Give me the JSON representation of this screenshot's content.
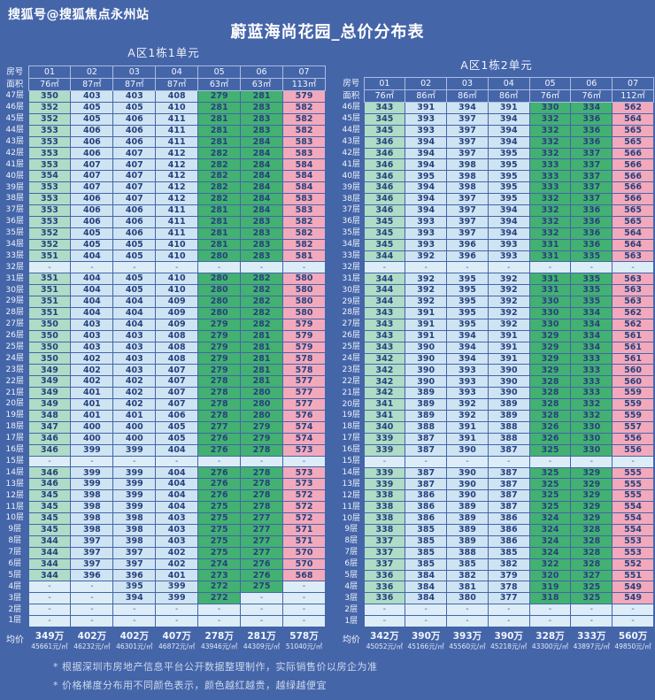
{
  "header": {
    "watermark": "搜狐号@搜狐焦点永州站",
    "title": "蔚蓝海尚花园_总价分布表"
  },
  "footnotes": [
    "* 根据深圳市房地产信息平台公开数据整理制作，实际销售价以房企为准",
    "* 价格梯度分布用不同颜色表示，颜色越红越贵，越绿越便宜"
  ],
  "colors": {
    "bg": "#4565a9",
    "celltext": "#27417d",
    "mint": "#aedcc6",
    "lightblue": "#cfe4f3",
    "green": "#42b172",
    "pink": "#f3a9bc",
    "empty": "#dcedf8"
  },
  "chart_data": [
    {
      "type": "table",
      "title": "A区1栋1单元",
      "corner_labels": {
        "room": "房号",
        "area": "面积",
        "avg": "均价"
      },
      "columns": [
        "01",
        "02",
        "03",
        "04",
        "05",
        "06",
        "07"
      ],
      "areas": [
        "76㎡",
        "87㎡",
        "87㎡",
        "87㎡",
        "63㎡",
        "63㎡",
        "113㎡"
      ],
      "floors": [
        "47层",
        "46层",
        "45层",
        "44层",
        "43层",
        "42层",
        "41层",
        "40层",
        "39层",
        "38层",
        "37层",
        "36层",
        "35层",
        "34层",
        "33层",
        "32层",
        "31层",
        "30层",
        "29层",
        "28层",
        "27层",
        "26层",
        "25层",
        "24层",
        "23层",
        "22层",
        "21层",
        "20层",
        "19层",
        "18层",
        "17层",
        "16层",
        "15层",
        "14层",
        "13层",
        "12层",
        "11层",
        "10层",
        "9层",
        "8层",
        "7层",
        "6层",
        "5层",
        "4层",
        "3层",
        "2层",
        "1层"
      ],
      "values": [
        [
          "350",
          "403",
          "403",
          "408",
          "279",
          "281",
          "579"
        ],
        [
          "352",
          "405",
          "405",
          "410",
          "281",
          "283",
          "582"
        ],
        [
          "352",
          "405",
          "406",
          "411",
          "281",
          "283",
          "582"
        ],
        [
          "353",
          "406",
          "406",
          "411",
          "281",
          "283",
          "582"
        ],
        [
          "353",
          "406",
          "406",
          "411",
          "281",
          "284",
          "583"
        ],
        [
          "353",
          "406",
          "407",
          "412",
          "282",
          "284",
          "583"
        ],
        [
          "353",
          "407",
          "407",
          "412",
          "282",
          "284",
          "584"
        ],
        [
          "354",
          "407",
          "407",
          "412",
          "282",
          "284",
          "584"
        ],
        [
          "353",
          "407",
          "407",
          "412",
          "282",
          "284",
          "584"
        ],
        [
          "353",
          "406",
          "407",
          "412",
          "282",
          "284",
          "583"
        ],
        [
          "353",
          "406",
          "406",
          "411",
          "281",
          "284",
          "583"
        ],
        [
          "353",
          "406",
          "406",
          "411",
          "281",
          "283",
          "582"
        ],
        [
          "352",
          "405",
          "406",
          "411",
          "281",
          "283",
          "582"
        ],
        [
          "352",
          "405",
          "405",
          "410",
          "281",
          "283",
          "582"
        ],
        [
          "351",
          "404",
          "405",
          "410",
          "280",
          "283",
          "581"
        ],
        [
          "-",
          "-",
          "-",
          "-",
          "-",
          "-",
          "-"
        ],
        [
          "351",
          "404",
          "405",
          "410",
          "280",
          "282",
          "580"
        ],
        [
          "351",
          "404",
          "405",
          "410",
          "280",
          "282",
          "580"
        ],
        [
          "351",
          "404",
          "404",
          "409",
          "280",
          "282",
          "580"
        ],
        [
          "351",
          "404",
          "404",
          "409",
          "280",
          "282",
          "580"
        ],
        [
          "350",
          "403",
          "404",
          "409",
          "279",
          "282",
          "579"
        ],
        [
          "350",
          "403",
          "403",
          "408",
          "279",
          "281",
          "579"
        ],
        [
          "350",
          "403",
          "403",
          "408",
          "279",
          "281",
          "579"
        ],
        [
          "350",
          "402",
          "403",
          "408",
          "279",
          "281",
          "578"
        ],
        [
          "349",
          "402",
          "403",
          "407",
          "279",
          "281",
          "578"
        ],
        [
          "349",
          "402",
          "402",
          "407",
          "278",
          "281",
          "577"
        ],
        [
          "349",
          "401",
          "402",
          "407",
          "278",
          "280",
          "577"
        ],
        [
          "349",
          "401",
          "402",
          "407",
          "278",
          "280",
          "577"
        ],
        [
          "348",
          "401",
          "401",
          "406",
          "278",
          "280",
          "576"
        ],
        [
          "347",
          "400",
          "400",
          "405",
          "277",
          "279",
          "574"
        ],
        [
          "346",
          "400",
          "400",
          "405",
          "276",
          "279",
          "574"
        ],
        [
          "346",
          "399",
          "399",
          "404",
          "276",
          "278",
          "573"
        ],
        [
          "-",
          "-",
          "-",
          "-",
          "-",
          "-",
          "-"
        ],
        [
          "346",
          "399",
          "399",
          "404",
          "276",
          "278",
          "573"
        ],
        [
          "346",
          "399",
          "399",
          "404",
          "276",
          "278",
          "573"
        ],
        [
          "345",
          "398",
          "399",
          "404",
          "276",
          "278",
          "572"
        ],
        [
          "345",
          "398",
          "399",
          "404",
          "275",
          "278",
          "572"
        ],
        [
          "345",
          "398",
          "398",
          "403",
          "275",
          "277",
          "572"
        ],
        [
          "345",
          "398",
          "398",
          "403",
          "275",
          "277",
          "571"
        ],
        [
          "344",
          "397",
          "398",
          "403",
          "275",
          "277",
          "571"
        ],
        [
          "344",
          "397",
          "397",
          "402",
          "275",
          "277",
          "570"
        ],
        [
          "344",
          "397",
          "397",
          "402",
          "274",
          "276",
          "570"
        ],
        [
          "344",
          "396",
          "396",
          "401",
          "273",
          "276",
          "568"
        ],
        [
          "-",
          "-",
          "395",
          "399",
          "272",
          "275",
          "-"
        ],
        [
          "-",
          "-",
          "394",
          "399",
          "272",
          "-",
          "-"
        ],
        [
          "-",
          "-",
          "-",
          "-",
          "-",
          "-",
          "-"
        ],
        [
          "-",
          "-",
          "-",
          "-",
          "-",
          "-",
          "-"
        ]
      ],
      "avg_prices": [
        "349万",
        "402万",
        "402万",
        "407万",
        "278万",
        "281万",
        "578万"
      ],
      "avg_unit_prices": [
        "45661元/㎡",
        "46232元/㎡",
        "46301元/㎡",
        "46872元/㎡",
        "43946元/㎡",
        "44309元/㎡",
        "51040元/㎡"
      ]
    },
    {
      "type": "table",
      "title": "A区1栋2单元",
      "corner_labels": {
        "room": "房号",
        "area": "面积",
        "avg": "均价"
      },
      "columns": [
        "01",
        "02",
        "03",
        "04",
        "05",
        "06",
        "07"
      ],
      "areas": [
        "76㎡",
        "86㎡",
        "86㎡",
        "86㎡",
        "76㎡",
        "76㎡",
        "112㎡"
      ],
      "floors": [
        "46层",
        "45层",
        "44层",
        "43层",
        "42层",
        "41层",
        "40层",
        "39层",
        "38层",
        "37层",
        "36层",
        "35层",
        "34层",
        "33层",
        "32层",
        "31层",
        "30层",
        "29层",
        "28层",
        "27层",
        "26层",
        "25层",
        "24层",
        "23层",
        "22层",
        "21层",
        "20层",
        "19层",
        "18层",
        "17层",
        "16层",
        "15层",
        "14层",
        "13层",
        "12层",
        "11层",
        "10层",
        "9层",
        "8层",
        "7层",
        "6层",
        "5层",
        "4层",
        "3层",
        "2层",
        "1层"
      ],
      "values": [
        [
          "343",
          "391",
          "394",
          "391",
          "330",
          "334",
          "562"
        ],
        [
          "345",
          "393",
          "397",
          "394",
          "332",
          "336",
          "564"
        ],
        [
          "345",
          "393",
          "397",
          "394",
          "332",
          "336",
          "565"
        ],
        [
          "346",
          "394",
          "397",
          "394",
          "332",
          "336",
          "565"
        ],
        [
          "346",
          "394",
          "397",
          "395",
          "332",
          "337",
          "566"
        ],
        [
          "346",
          "394",
          "398",
          "395",
          "333",
          "337",
          "566"
        ],
        [
          "346",
          "395",
          "398",
          "395",
          "333",
          "337",
          "566"
        ],
        [
          "346",
          "394",
          "398",
          "395",
          "333",
          "337",
          "566"
        ],
        [
          "346",
          "394",
          "397",
          "395",
          "332",
          "337",
          "566"
        ],
        [
          "346",
          "394",
          "397",
          "394",
          "332",
          "336",
          "565"
        ],
        [
          "345",
          "393",
          "397",
          "394",
          "332",
          "336",
          "565"
        ],
        [
          "345",
          "393",
          "397",
          "394",
          "332",
          "336",
          "564"
        ],
        [
          "345",
          "393",
          "396",
          "393",
          "331",
          "336",
          "564"
        ],
        [
          "344",
          "392",
          "396",
          "393",
          "331",
          "335",
          "563"
        ],
        [
          "-",
          "-",
          "-",
          "-",
          "-",
          "-",
          "-"
        ],
        [
          "344",
          "392",
          "395",
          "392",
          "331",
          "335",
          "563"
        ],
        [
          "344",
          "392",
          "395",
          "392",
          "331",
          "335",
          "563"
        ],
        [
          "344",
          "392",
          "395",
          "392",
          "330",
          "335",
          "563"
        ],
        [
          "343",
          "391",
          "395",
          "392",
          "330",
          "334",
          "562"
        ],
        [
          "343",
          "391",
          "395",
          "392",
          "330",
          "334",
          "562"
        ],
        [
          "343",
          "391",
          "394",
          "391",
          "329",
          "334",
          "561"
        ],
        [
          "343",
          "390",
          "394",
          "391",
          "329",
          "334",
          "561"
        ],
        [
          "342",
          "390",
          "394",
          "391",
          "329",
          "333",
          "561"
        ],
        [
          "342",
          "390",
          "393",
          "390",
          "329",
          "333",
          "560"
        ],
        [
          "342",
          "390",
          "393",
          "390",
          "328",
          "333",
          "560"
        ],
        [
          "342",
          "389",
          "393",
          "390",
          "328",
          "333",
          "559"
        ],
        [
          "341",
          "389",
          "392",
          "389",
          "328",
          "332",
          "559"
        ],
        [
          "341",
          "389",
          "392",
          "389",
          "328",
          "332",
          "559"
        ],
        [
          "340",
          "388",
          "391",
          "388",
          "326",
          "330",
          "557"
        ],
        [
          "339",
          "387",
          "391",
          "388",
          "326",
          "330",
          "556"
        ],
        [
          "339",
          "387",
          "390",
          "387",
          "325",
          "330",
          "556"
        ],
        [
          "-",
          "-",
          "-",
          "-",
          "-",
          "-",
          "-"
        ],
        [
          "339",
          "387",
          "390",
          "387",
          "325",
          "329",
          "555"
        ],
        [
          "339",
          "387",
          "390",
          "387",
          "325",
          "329",
          "555"
        ],
        [
          "338",
          "386",
          "390",
          "387",
          "325",
          "329",
          "555"
        ],
        [
          "338",
          "386",
          "389",
          "387",
          "325",
          "329",
          "554"
        ],
        [
          "338",
          "386",
          "389",
          "386",
          "324",
          "329",
          "554"
        ],
        [
          "338",
          "385",
          "389",
          "386",
          "324",
          "328",
          "554"
        ],
        [
          "337",
          "385",
          "389",
          "386",
          "324",
          "328",
          "553"
        ],
        [
          "337",
          "385",
          "388",
          "385",
          "324",
          "328",
          "553"
        ],
        [
          "337",
          "385",
          "385",
          "382",
          "322",
          "328",
          "552"
        ],
        [
          "336",
          "384",
          "382",
          "379",
          "320",
          "327",
          "551"
        ],
        [
          "336",
          "384",
          "381",
          "378",
          "319",
          "325",
          "549"
        ],
        [
          "336",
          "384",
          "380",
          "377",
          "318",
          "325",
          "549"
        ],
        [
          "-",
          "-",
          "-",
          "-",
          "-",
          "-",
          "-"
        ],
        [
          "-",
          "-",
          "-",
          "-",
          "-",
          "-",
          "-"
        ]
      ],
      "avg_prices": [
        "342万",
        "390万",
        "393万",
        "390万",
        "328万",
        "333万",
        "560万"
      ],
      "avg_unit_prices": [
        "45052元/㎡",
        "45166元/㎡",
        "45560元/㎡",
        "45218元/㎡",
        "43300元/㎡",
        "43897元/㎡",
        "49850元/㎡"
      ]
    }
  ]
}
